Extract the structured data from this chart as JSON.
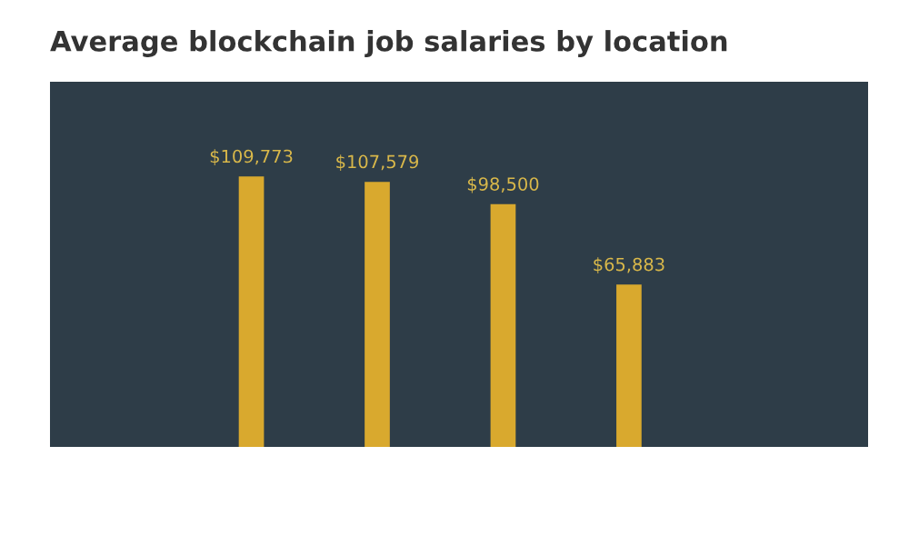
{
  "chart_data": {
    "type": "bar",
    "title": "Average blockchain job salaries by location",
    "categories": [
      null,
      null,
      null,
      null
    ],
    "values": [
      109773,
      107579,
      98500,
      65883
    ],
    "value_labels": [
      "$109,773",
      "$107,579",
      "$98,500",
      "$65,883"
    ],
    "color": "#d9a92e",
    "grid": false
  }
}
